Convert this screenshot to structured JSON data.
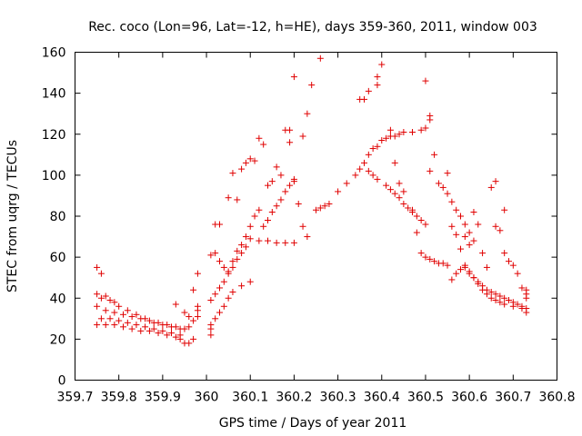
{
  "chart_data": {
    "type": "scatter",
    "title": "Rec. coco (Lon=96, Lat=-12, h=HE), days 359-360, 2011, window 003",
    "xlabel": "GPS time / Days of year 2011",
    "ylabel": "STEC from uqrg / TECUs",
    "xlim": [
      359.7,
      360.8
    ],
    "ylim": [
      0,
      160
    ],
    "xticks": [
      "359.7",
      "359.8",
      "359.9",
      "360",
      "360.1",
      "360.2",
      "360.3",
      "360.4",
      "360.5",
      "360.6",
      "360.7",
      "360.8"
    ],
    "yticks": [
      "0",
      "20",
      "40",
      "60",
      "80",
      "100",
      "120",
      "140",
      "160"
    ],
    "grid": false,
    "legend": "none",
    "marker": "plus",
    "color": "#e00000",
    "series": [
      {
        "points": [
          [
            359.75,
            55
          ],
          [
            359.76,
            52
          ],
          [
            359.75,
            42
          ],
          [
            359.76,
            40
          ],
          [
            359.77,
            41
          ],
          [
            359.78,
            39
          ],
          [
            359.79,
            38
          ],
          [
            359.8,
            36
          ],
          [
            359.82,
            34
          ],
          [
            359.84,
            32
          ],
          [
            359.86,
            30
          ],
          [
            359.88,
            28
          ],
          [
            359.9,
            27
          ],
          [
            359.92,
            26
          ],
          [
            359.94,
            25
          ],
          [
            359.96,
            26
          ],
          [
            359.97,
            29
          ],
          [
            359.75,
            36
          ],
          [
            359.77,
            34
          ],
          [
            359.79,
            33
          ],
          [
            359.81,
            32
          ],
          [
            359.83,
            31
          ],
          [
            359.85,
            30
          ],
          [
            359.87,
            29
          ],
          [
            359.89,
            28
          ],
          [
            359.91,
            27
          ],
          [
            359.93,
            26
          ],
          [
            359.95,
            25
          ],
          [
            359.75,
            27
          ],
          [
            359.77,
            27
          ],
          [
            359.79,
            27
          ],
          [
            359.81,
            26
          ],
          [
            359.83,
            25
          ],
          [
            359.85,
            24
          ],
          [
            359.87,
            24
          ],
          [
            359.89,
            23
          ],
          [
            359.91,
            22
          ],
          [
            359.93,
            21
          ],
          [
            359.94,
            20
          ],
          [
            359.95,
            18
          ],
          [
            359.96,
            18
          ],
          [
            359.97,
            20
          ],
          [
            359.76,
            30
          ],
          [
            359.78,
            30
          ],
          [
            359.8,
            29
          ],
          [
            359.82,
            28
          ],
          [
            359.84,
            27
          ],
          [
            359.86,
            26
          ],
          [
            359.88,
            25
          ],
          [
            359.9,
            24
          ],
          [
            359.92,
            23
          ],
          [
            359.94,
            22
          ],
          [
            359.93,
            37
          ],
          [
            359.95,
            33
          ],
          [
            359.96,
            31
          ],
          [
            359.97,
            44
          ],
          [
            359.98,
            52
          ],
          [
            359.98,
            36
          ],
          [
            359.98,
            34
          ],
          [
            359.98,
            31
          ],
          [
            360.01,
            22
          ],
          [
            360.01,
            25
          ],
          [
            360.01,
            27
          ],
          [
            360.02,
            30
          ],
          [
            360.03,
            33
          ],
          [
            360.04,
            36
          ],
          [
            360.05,
            40
          ],
          [
            360.06,
            43
          ],
          [
            360.08,
            46
          ],
          [
            360.1,
            48
          ],
          [
            360.01,
            39
          ],
          [
            360.02,
            42
          ],
          [
            360.03,
            45
          ],
          [
            360.04,
            48
          ],
          [
            360.05,
            52
          ],
          [
            360.06,
            55
          ],
          [
            360.07,
            59
          ],
          [
            360.08,
            62
          ],
          [
            360.09,
            65
          ],
          [
            360.1,
            69
          ],
          [
            360.12,
            68
          ],
          [
            360.14,
            68
          ],
          [
            360.16,
            67
          ],
          [
            360.18,
            67
          ],
          [
            360.2,
            67
          ],
          [
            360.01,
            61
          ],
          [
            360.02,
            62
          ],
          [
            360.03,
            58
          ],
          [
            360.04,
            55
          ],
          [
            360.05,
            53
          ],
          [
            360.06,
            58
          ],
          [
            360.07,
            63
          ],
          [
            360.08,
            66
          ],
          [
            360.09,
            70
          ],
          [
            360.1,
            75
          ],
          [
            360.11,
            80
          ],
          [
            360.12,
            83
          ],
          [
            360.02,
            76
          ],
          [
            360.03,
            76
          ],
          [
            360.05,
            89
          ],
          [
            360.06,
            101
          ],
          [
            360.07,
            88
          ],
          [
            360.08,
            103
          ],
          [
            360.09,
            106
          ],
          [
            360.1,
            108
          ],
          [
            360.11,
            107
          ],
          [
            360.12,
            118
          ],
          [
            360.13,
            115
          ],
          [
            360.13,
            75
          ],
          [
            360.14,
            95
          ],
          [
            360.15,
            97
          ],
          [
            360.16,
            104
          ],
          [
            360.17,
            100
          ],
          [
            360.18,
            122
          ],
          [
            360.19,
            116
          ],
          [
            360.19,
            122
          ],
          [
            360.2,
            98
          ],
          [
            360.14,
            78
          ],
          [
            360.15,
            82
          ],
          [
            360.16,
            85
          ],
          [
            360.17,
            88
          ],
          [
            360.18,
            92
          ],
          [
            360.19,
            95
          ],
          [
            360.2,
            97
          ],
          [
            360.21,
            86
          ],
          [
            360.22,
            75
          ],
          [
            360.23,
            70
          ],
          [
            360.2,
            148
          ],
          [
            360.23,
            130
          ],
          [
            360.24,
            144
          ],
          [
            360.26,
            157
          ],
          [
            360.22,
            119
          ],
          [
            360.25,
            83
          ],
          [
            360.26,
            84
          ],
          [
            360.27,
            85
          ],
          [
            360.28,
            86
          ],
          [
            360.3,
            92
          ],
          [
            360.32,
            96
          ],
          [
            360.34,
            100
          ],
          [
            360.35,
            103
          ],
          [
            360.36,
            106
          ],
          [
            360.37,
            110
          ],
          [
            360.38,
            113
          ],
          [
            360.39,
            114
          ],
          [
            360.4,
            117
          ],
          [
            360.41,
            118
          ],
          [
            360.42,
            119
          ],
          [
            360.43,
            119
          ],
          [
            360.44,
            120
          ],
          [
            360.45,
            121
          ],
          [
            360.47,
            121
          ],
          [
            360.49,
            122
          ],
          [
            360.5,
            123
          ],
          [
            360.51,
            129
          ],
          [
            360.51,
            127
          ],
          [
            360.35,
            137
          ],
          [
            360.36,
            137
          ],
          [
            360.37,
            141
          ],
          [
            360.39,
            148
          ],
          [
            360.4,
            154
          ],
          [
            360.39,
            144
          ],
          [
            360.37,
            102
          ],
          [
            360.38,
            100
          ],
          [
            360.39,
            98
          ],
          [
            360.41,
            95
          ],
          [
            360.42,
            93
          ],
          [
            360.43,
            91
          ],
          [
            360.44,
            89
          ],
          [
            360.45,
            86
          ],
          [
            360.46,
            84
          ],
          [
            360.47,
            82
          ],
          [
            360.48,
            80
          ],
          [
            360.49,
            78
          ],
          [
            360.5,
            76
          ],
          [
            360.42,
            122
          ],
          [
            360.43,
            106
          ],
          [
            360.44,
            96
          ],
          [
            360.45,
            92
          ],
          [
            360.47,
            83
          ],
          [
            360.48,
            72
          ],
          [
            360.49,
            62
          ],
          [
            360.5,
            60
          ],
          [
            360.51,
            59
          ],
          [
            360.52,
            58
          ],
          [
            360.53,
            57
          ],
          [
            360.54,
            57
          ],
          [
            360.55,
            56
          ],
          [
            360.5,
            146
          ],
          [
            360.51,
            102
          ],
          [
            360.52,
            110
          ],
          [
            360.53,
            96
          ],
          [
            360.54,
            94
          ],
          [
            360.55,
            91
          ],
          [
            360.56,
            87
          ],
          [
            360.57,
            83
          ],
          [
            360.58,
            80
          ],
          [
            360.59,
            76
          ],
          [
            360.6,
            72
          ],
          [
            360.61,
            68
          ],
          [
            360.55,
            101
          ],
          [
            360.56,
            75
          ],
          [
            360.57,
            71
          ],
          [
            360.58,
            64
          ],
          [
            360.59,
            56
          ],
          [
            360.6,
            52
          ],
          [
            360.61,
            50
          ],
          [
            360.62,
            47
          ],
          [
            360.63,
            44
          ],
          [
            360.64,
            42
          ],
          [
            360.65,
            40
          ],
          [
            360.66,
            39
          ],
          [
            360.67,
            38
          ],
          [
            360.68,
            37
          ],
          [
            360.7,
            36
          ],
          [
            360.72,
            35
          ],
          [
            360.73,
            33
          ],
          [
            360.56,
            49
          ],
          [
            360.57,
            52
          ],
          [
            360.58,
            54
          ],
          [
            360.59,
            55
          ],
          [
            360.6,
            53
          ],
          [
            360.61,
            50
          ],
          [
            360.62,
            48
          ],
          [
            360.63,
            46
          ],
          [
            360.64,
            44
          ],
          [
            360.65,
            43
          ],
          [
            360.66,
            42
          ],
          [
            360.67,
            41
          ],
          [
            360.68,
            40
          ],
          [
            360.69,
            39
          ],
          [
            360.7,
            38
          ],
          [
            360.71,
            37
          ],
          [
            360.72,
            36
          ],
          [
            360.73,
            35
          ],
          [
            360.59,
            70
          ],
          [
            360.6,
            66
          ],
          [
            360.61,
            82
          ],
          [
            360.62,
            76
          ],
          [
            360.63,
            62
          ],
          [
            360.64,
            55
          ],
          [
            360.65,
            94
          ],
          [
            360.66,
            97
          ],
          [
            360.66,
            75
          ],
          [
            360.67,
            73
          ],
          [
            360.68,
            83
          ],
          [
            360.68,
            62
          ],
          [
            360.69,
            58
          ],
          [
            360.7,
            56
          ],
          [
            360.71,
            52
          ],
          [
            360.72,
            45
          ],
          [
            360.73,
            44
          ],
          [
            360.73,
            42
          ],
          [
            360.73,
            40
          ]
        ]
      }
    ]
  }
}
